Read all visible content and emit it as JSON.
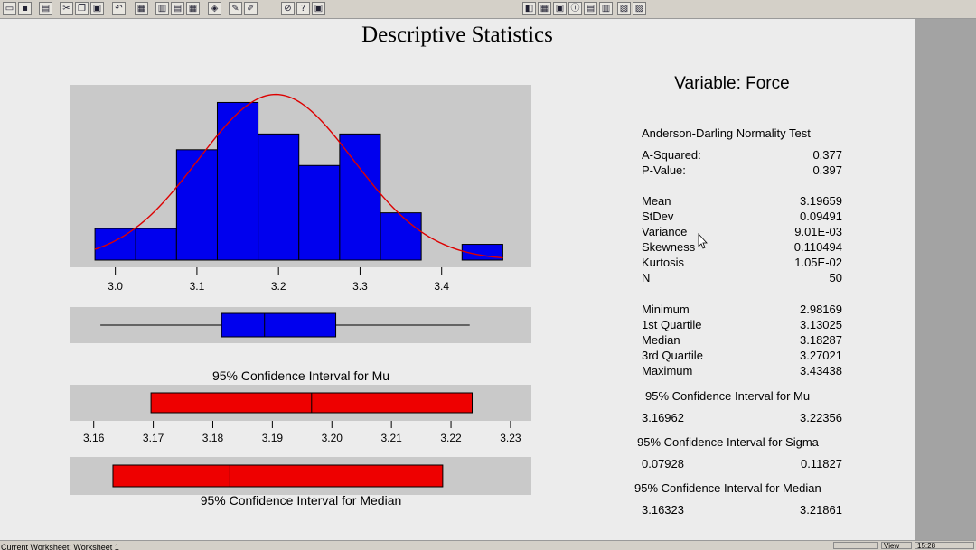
{
  "toolbar": {
    "left_icons": [
      "open-icon",
      "save-icon",
      "print-icon",
      "cut-icon",
      "copy-icon",
      "paste-icon",
      "undo-icon",
      "session-icon",
      "worksheet-icon",
      "project-icon",
      "info-icon",
      "graph-icon",
      "brush-icon",
      "edit-icon",
      "cancel-icon",
      "help-icon",
      "manager-icon"
    ],
    "right_icons": [
      "graph-tool-icon",
      "layout-icon",
      "window-icon",
      "info-tool-icon",
      "history-icon",
      "report-icon",
      "arrange-icon",
      "tile-icon"
    ]
  },
  "main_title": "Descriptive Statistics",
  "variable_title": "Variable: Force",
  "statusbar": {
    "text": "Current Worksheet: Worksheet 1",
    "view_label": "View",
    "time": "15:28"
  },
  "colors": {
    "bar_fill": "#0000ee",
    "ci_fill": "#ee0000",
    "curve": "#dd0000",
    "plot_bg": "#c9c9c9"
  },
  "stats": {
    "normality_title": "Anderson-Darling Normality Test",
    "group1": [
      {
        "label": "A-Squared:",
        "value": "0.377"
      },
      {
        "label": "P-Value:",
        "value": "0.397"
      }
    ],
    "group2": [
      {
        "label": "Mean",
        "value": "3.19659"
      },
      {
        "label": "StDev",
        "value": "0.09491"
      },
      {
        "label": "Variance",
        "value": "9.01E-03"
      },
      {
        "label": "Skewness",
        "value": "0.110494"
      },
      {
        "label": "Kurtosis",
        "value": "1.05E-02"
      },
      {
        "label": "N",
        "value": "50"
      }
    ],
    "group3": [
      {
        "label": "Minimum",
        "value": "2.98169"
      },
      {
        "label": "1st Quartile",
        "value": "3.13025"
      },
      {
        "label": "Median",
        "value": "3.18287"
      },
      {
        "label": "3rd Quartile",
        "value": "3.27021"
      },
      {
        "label": "Maximum",
        "value": "3.43438"
      }
    ],
    "ci_mu": {
      "title": "95% Confidence Interval for Mu",
      "low": "3.16962",
      "high": "3.22356"
    },
    "ci_sigma": {
      "title": "95% Confidence Interval for Sigma",
      "low": "0.07928",
      "high": "0.11827"
    },
    "ci_median": {
      "title": "95% Confidence Interval for Median",
      "low": "3.16323",
      "high": "3.21861"
    }
  },
  "chart_data": [
    {
      "type": "bar",
      "subtype": "histogram",
      "bin_edges": [
        2.975,
        3.025,
        3.075,
        3.125,
        3.175,
        3.225,
        3.275,
        3.325,
        3.375,
        3.425,
        3.475
      ],
      "values": [
        2,
        2,
        7,
        10,
        8,
        6,
        8,
        3,
        0,
        1
      ],
      "fitted_normal": {
        "mean": 3.19659,
        "stdev": 0.09491,
        "n": 50
      },
      "x_ticks": [
        3.0,
        3.1,
        3.2,
        3.3,
        3.4
      ],
      "x_tick_labels": [
        "3.0",
        "3.1",
        "3.2",
        "3.3",
        "3.4"
      ],
      "xlim": [
        2.945,
        3.51
      ],
      "ylim": [
        0,
        11
      ]
    },
    {
      "type": "boxplot",
      "min": 2.98169,
      "q1": 3.13025,
      "median": 3.18287,
      "q3": 3.27021,
      "max": 3.43438,
      "xlim": [
        2.945,
        3.51
      ]
    },
    {
      "type": "interval",
      "title": "95% Confidence Interval for Mu",
      "low": 3.16962,
      "center": 3.19659,
      "high": 3.22356,
      "x_ticks": [
        3.16,
        3.17,
        3.18,
        3.19,
        3.2,
        3.21,
        3.22,
        3.23
      ],
      "x_tick_labels": [
        "3.16",
        "3.17",
        "3.18",
        "3.19",
        "3.20",
        "3.21",
        "3.22",
        "3.23"
      ],
      "xlim": [
        3.1561,
        3.2335
      ]
    },
    {
      "type": "interval",
      "title": "95% Confidence Interval for Median",
      "low": 3.16323,
      "center": 3.18287,
      "high": 3.21861,
      "xlim": [
        3.1561,
        3.2335
      ]
    }
  ]
}
